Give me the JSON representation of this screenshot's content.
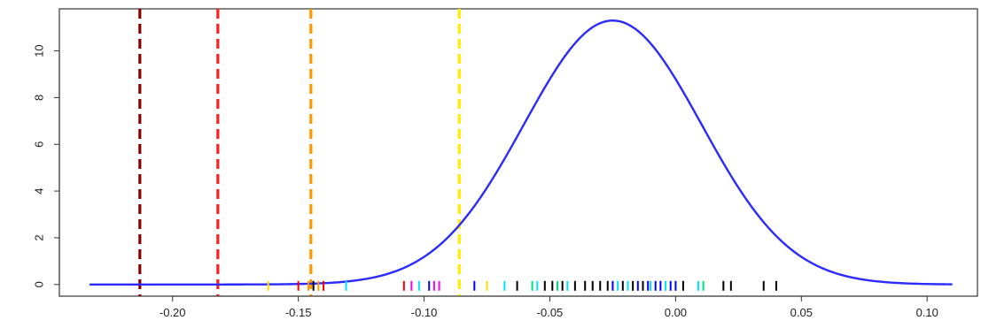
{
  "chart_data": {
    "type": "line",
    "title": "",
    "xlabel": "",
    "ylabel": "",
    "xlim": [
      -0.245,
      0.12
    ],
    "ylim": [
      -0.5,
      11.8
    ],
    "x_ticks": [
      "-0.20",
      "-0.15",
      "-0.10",
      "-0.05",
      "0.00",
      "0.05",
      "0.10"
    ],
    "x_tick_values": [
      -0.2,
      -0.15,
      -0.1,
      -0.05,
      0.0,
      0.05,
      0.1
    ],
    "y_ticks": [
      "0",
      "2",
      "4",
      "6",
      "8",
      "10"
    ],
    "y_tick_values": [
      0,
      2,
      4,
      6,
      8,
      10
    ],
    "grid": false,
    "density_curve": {
      "distribution": "normal",
      "mean": -0.025,
      "sd": 0.0353,
      "peak": 11.3,
      "x_range": [
        -0.233,
        0.11
      ],
      "color": "#2b2bff"
    },
    "vertical_lines": [
      {
        "x": -0.213,
        "color": "#8b0000",
        "style": "dashed"
      },
      {
        "x": -0.182,
        "color": "#ff2020",
        "style": "dashed"
      },
      {
        "x": -0.145,
        "color": "#ff9900",
        "style": "dashed"
      },
      {
        "x": -0.086,
        "color": "#ffee00",
        "style": "dashed"
      }
    ],
    "rug": [
      {
        "x": -0.162,
        "color": "#ffdd00"
      },
      {
        "x": -0.15,
        "color": "#ff0000"
      },
      {
        "x": -0.146,
        "color": "#ff9900"
      },
      {
        "x": -0.144,
        "color": "#000000"
      },
      {
        "x": -0.142,
        "color": "#ff9900"
      },
      {
        "x": -0.14,
        "color": "#ff0000"
      },
      {
        "x": -0.131,
        "color": "#00e5ff"
      },
      {
        "x": -0.108,
        "color": "#ff0000"
      },
      {
        "x": -0.105,
        "color": "#ff00ff"
      },
      {
        "x": -0.102,
        "color": "#00e5ff"
      },
      {
        "x": -0.098,
        "color": "#0000ff"
      },
      {
        "x": -0.096,
        "color": "#ff00ff"
      },
      {
        "x": -0.094,
        "color": "#ff00ff"
      },
      {
        "x": -0.08,
        "color": "#0000ff"
      },
      {
        "x": -0.075,
        "color": "#ffdd00"
      },
      {
        "x": -0.068,
        "color": "#00e5ff"
      },
      {
        "x": -0.063,
        "color": "#000000"
      },
      {
        "x": -0.057,
        "color": "#00e080"
      },
      {
        "x": -0.055,
        "color": "#00e5ff"
      },
      {
        "x": -0.052,
        "color": "#000000"
      },
      {
        "x": -0.049,
        "color": "#000000"
      },
      {
        "x": -0.047,
        "color": "#00e080"
      },
      {
        "x": -0.045,
        "color": "#000000"
      },
      {
        "x": -0.043,
        "color": "#00e5ff"
      },
      {
        "x": -0.04,
        "color": "#000000"
      },
      {
        "x": -0.036,
        "color": "#000000"
      },
      {
        "x": -0.033,
        "color": "#000000"
      },
      {
        "x": -0.03,
        "color": "#000000"
      },
      {
        "x": -0.027,
        "color": "#000000"
      },
      {
        "x": -0.025,
        "color": "#0000ff"
      },
      {
        "x": -0.023,
        "color": "#00e5ff"
      },
      {
        "x": -0.021,
        "color": "#000000"
      },
      {
        "x": -0.019,
        "color": "#00e5ff"
      },
      {
        "x": -0.017,
        "color": "#000000"
      },
      {
        "x": -0.015,
        "color": "#0000ff"
      },
      {
        "x": -0.013,
        "color": "#000000"
      },
      {
        "x": -0.011,
        "color": "#0000ff"
      },
      {
        "x": -0.01,
        "color": "#00e5ff"
      },
      {
        "x": -0.008,
        "color": "#0000ff"
      },
      {
        "x": -0.006,
        "color": "#0000ff"
      },
      {
        "x": -0.004,
        "color": "#00e5ff"
      },
      {
        "x": -0.002,
        "color": "#0000ff"
      },
      {
        "x": 0.0,
        "color": "#0000ff"
      },
      {
        "x": 0.003,
        "color": "#000000"
      },
      {
        "x": 0.009,
        "color": "#00e5ff"
      },
      {
        "x": 0.011,
        "color": "#00e080"
      },
      {
        "x": 0.019,
        "color": "#000000"
      },
      {
        "x": 0.022,
        "color": "#000000"
      },
      {
        "x": 0.035,
        "color": "#000000"
      },
      {
        "x": 0.04,
        "color": "#000000"
      }
    ]
  }
}
